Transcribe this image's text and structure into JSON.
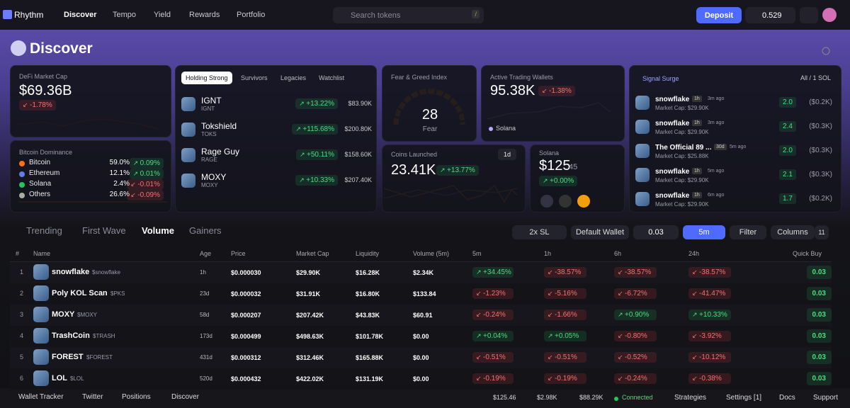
{
  "nav": {
    "brand": "Rhythm",
    "links": [
      "Discover",
      "Tempo",
      "Yield",
      "Rewards",
      "Portfolio"
    ],
    "search": "Search tokens",
    "shortcut": "/",
    "deposit": "Deposit",
    "balance": "0.529"
  },
  "page_title": "Discover",
  "defi": {
    "label": "DeFi Market Cap",
    "value": "$69.36B",
    "change": "-1.78%"
  },
  "dominance": {
    "title": "Bitcoin Dominance",
    "rows": [
      {
        "name": "Bitcoin",
        "pct": "59.0%",
        "change": "0.09%"
      },
      {
        "name": "Ethereum",
        "pct": "12.1%",
        "change": "0.01%"
      },
      {
        "name": "Solana",
        "pct": "2.4%",
        "change": "-0.01%"
      },
      {
        "name": "Others",
        "pct": "26.6%",
        "change": "-0.09%"
      }
    ]
  },
  "holding": {
    "tabs": [
      "Holding Strong",
      "Survivors",
      "Legacies",
      "Watchlist"
    ],
    "tokens": [
      {
        "name": "IGNT",
        "ticker": "IGNT",
        "change": "+13.22%",
        "mc": "$83.90K"
      },
      {
        "name": "Tokshield",
        "ticker": "TOKS",
        "change": "+115.68%",
        "mc": "$200.80K"
      },
      {
        "name": "Rage Guy",
        "ticker": "RAGE",
        "change": "+50.11%",
        "mc": "$158.60K"
      },
      {
        "name": "MOXY",
        "ticker": "MOXY",
        "change": "+10.33%",
        "mc": "$207.40K"
      }
    ]
  },
  "fear": {
    "title": "Fear & Greed Index",
    "value": "28",
    "label": "Fear"
  },
  "wallets": {
    "title": "Active Trading Wallets",
    "value": "95.38K",
    "change": "-1.38%",
    "legend": "Solana"
  },
  "coins": {
    "title": "Coins Launched",
    "value": "23.41K",
    "change": "+13.77%",
    "period": "1d"
  },
  "solana": {
    "title": "Solana",
    "price": "$125",
    "cents": ".45",
    "change": "+0.00%"
  },
  "signal": {
    "title": "Signal Surge",
    "filter": "All / 1 SOL",
    "items": [
      {
        "name": "snowflake",
        "age": "1h",
        "time": "3m ago",
        "mc": "Market Cap: $29.90K",
        "amount": "2.0",
        "usd": "($0.2K)"
      },
      {
        "name": "snowflake",
        "age": "1h",
        "time": "3m ago",
        "mc": "Market Cap: $29.90K",
        "amount": "2.4",
        "usd": "($0.3K)"
      },
      {
        "name": "The Official 89 ...",
        "age": "30d",
        "time": "5m ago",
        "mc": "Market Cap: $25.88K",
        "amount": "2.0",
        "usd": "($0.3K)"
      },
      {
        "name": "snowflake",
        "age": "1h",
        "time": "5m ago",
        "mc": "Market Cap: $29.90K",
        "amount": "2.1",
        "usd": "($0.3K)"
      },
      {
        "name": "snowflake",
        "age": "1h",
        "time": "6m ago",
        "mc": "Market Cap: $29.90K",
        "amount": "1.7",
        "usd": "($0.2K)"
      }
    ]
  },
  "table": {
    "tabs": [
      "Trending",
      "First Wave",
      "Volume",
      "Gainers"
    ],
    "controls": {
      "sl": "2x SL",
      "wallet": "Default Wallet",
      "amount": "0.03",
      "interval": "5m",
      "filter": "Filter",
      "columns": "Columns",
      "column_count": "11"
    },
    "header": [
      "#",
      "Name",
      "Age",
      "Price",
      "Market Cap",
      "Liquidity",
      "Volume (5m)",
      "5m",
      "1h",
      "6h",
      "24h",
      "Quick Buy"
    ],
    "rows": [
      [
        "1",
        "snowflake",
        "$snowflake",
        "1h",
        "$0.000030",
        "$29.90K",
        "$16.28K",
        "$2.34K",
        "+34.45%",
        "-38.57%",
        "-38.57%",
        "-38.57%",
        "0.03"
      ],
      [
        "2",
        "Poly KOL Scan",
        "$PKS",
        "23d",
        "$0.000032",
        "$31.91K",
        "$16.80K",
        "$133.84",
        "-1.23%",
        "-5.16%",
        "-6.72%",
        "-41.47%",
        "0.03"
      ],
      [
        "3",
        "MOXY",
        "$MOXY",
        "58d",
        "$0.000207",
        "$207.42K",
        "$43.83K",
        "$60.91",
        "-0.24%",
        "-1.66%",
        "+0.90%",
        "+10.33%",
        "0.03"
      ],
      [
        "4",
        "TrashCoin",
        "$TRASH",
        "173d",
        "$0.000499",
        "$498.63K",
        "$101.78K",
        "$0.00",
        "+0.04%",
        "+0.05%",
        "-0.80%",
        "-3.92%",
        "0.03"
      ],
      [
        "5",
        "FOREST",
        "$FOREST",
        "431d",
        "$0.000312",
        "$312.46K",
        "$165.88K",
        "$0.00",
        "-0.51%",
        "-0.51%",
        "-0.52%",
        "-10.12%",
        "0.03"
      ],
      [
        "6",
        "LOL",
        "$LOL",
        "520d",
        "$0.000432",
        "$422.02K",
        "$131.19K",
        "$0.00",
        "-0.19%",
        "-0.19%",
        "-0.24%",
        "-0.38%",
        "0.03"
      ]
    ]
  },
  "footer": {
    "left": [
      "Wallet Tracker",
      "Twitter",
      "Positions",
      "Discover"
    ],
    "prices": [
      "$125.46",
      "$2.98K",
      "$88.29K"
    ],
    "status": "Connected",
    "right": [
      "Strategies",
      "Settings [1]",
      "Docs",
      "Support"
    ]
  }
}
